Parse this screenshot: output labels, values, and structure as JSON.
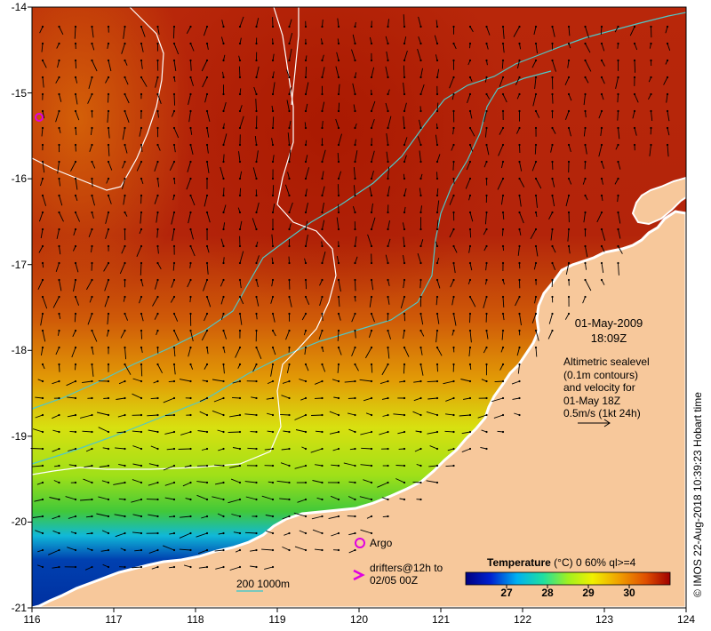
{
  "map": {
    "x_ticks": [
      "116",
      "117",
      "118",
      "119",
      "120",
      "121",
      "122",
      "123",
      "124"
    ],
    "y_ticks": [
      "-14",
      "-15",
      "-16",
      "-17",
      "-18",
      "-19",
      "-20",
      "-21"
    ],
    "lon_range": [
      116,
      124
    ],
    "lat_range": [
      -21,
      -14
    ],
    "date_line1": "01-May-2009",
    "date_line2": "18:09Z",
    "info_lines": [
      "Altimetric sealevel",
      "(0.1m contours)",
      "and velocity for",
      "01-May 18Z",
      "0.5m/s (1kt 24h)"
    ],
    "argo_label": "Argo",
    "drifters_line1": "drifters@12h to",
    "drifters_line2": "02/05 00Z",
    "scale_label": "200 1000m",
    "credit": "© IMOS 22-Aug-2018 10:39:23 Hobart time"
  },
  "colorbar": {
    "title_bold": "Temperature",
    "title_rest": "(°C) 0 60% ql>=4",
    "ticks": [
      "27",
      "28",
      "29",
      "30"
    ],
    "range": [
      26.0,
      31.0
    ],
    "tick_values": [
      27,
      28,
      29,
      30
    ]
  },
  "colors": {
    "land": "#f7c89b",
    "hot": "#b31c00",
    "warm": "#d95f00",
    "mid": "#e8a300",
    "cool_yellow": "#d6e800",
    "green": "#5ad01a",
    "cyan": "#00c8e0",
    "blue": "#0030a0",
    "contour_cyan": "#4fc8c8",
    "argo_magenta": "#e000e0"
  }
}
